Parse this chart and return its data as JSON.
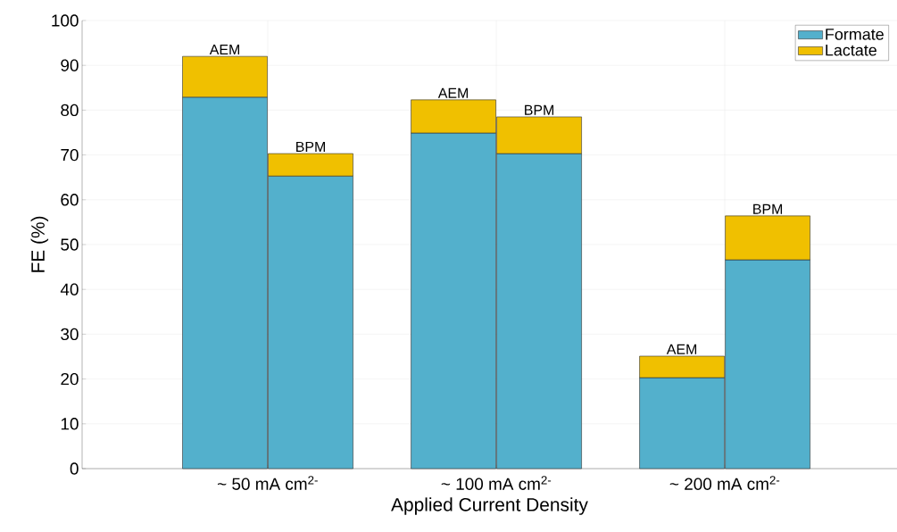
{
  "chart_data": {
    "type": "bar",
    "stacked": true,
    "xlabel": "Applied Current Density",
    "ylabel": "FE (%)",
    "categories": [
      "AEM",
      "BPM",
      "AEM",
      "BPM",
      "AEM",
      "BPM"
    ],
    "series": [
      {
        "name": "Formate",
        "color": "#53b0cc",
        "values": [
          82.9,
          65.3,
          74.9,
          70.3,
          20.3,
          46.6
        ]
      },
      {
        "name": "Lactate",
        "color": "#f0c000",
        "values": [
          9.1,
          5.0,
          7.4,
          8.2,
          4.8,
          9.8
        ]
      }
    ],
    "annotations": [
      "~ 50 mA cm$^{2-}$",
      "~ 100 mA cm$^{2-}$",
      "~ 200 mA cm$^{2-}$"
    ],
    "ylim": [
      0,
      100
    ],
    "yticks": [
      0,
      10,
      20,
      30,
      40,
      50,
      60,
      70,
      80,
      90,
      100
    ],
    "grid": true,
    "legend": "top right"
  }
}
